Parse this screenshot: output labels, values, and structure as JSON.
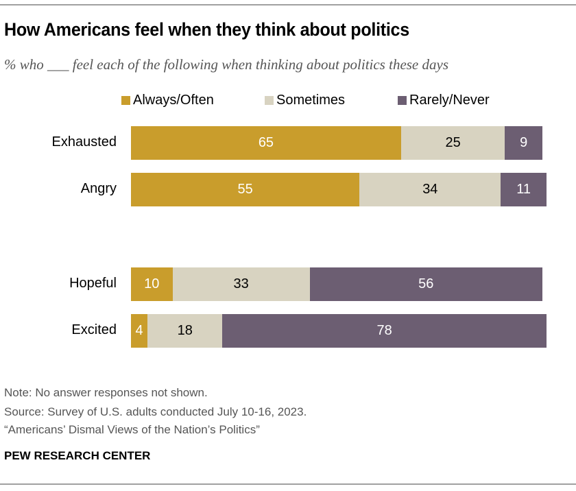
{
  "chart_data": {
    "type": "bar",
    "orientation": "horizontal",
    "stacked": true,
    "title": "How Americans feel when they think about politics",
    "subtitle": "% who ___ feel each of the following when thinking about politics these days",
    "categories": [
      "Exhausted",
      "Angry",
      "Hopeful",
      "Excited"
    ],
    "series": [
      {
        "name": "Always/Often",
        "color": "#C99D2C",
        "label_color": "#ffffff",
        "values": [
          65,
          55,
          10,
          4
        ]
      },
      {
        "name": "Sometimes",
        "color": "#D8D3C1",
        "label_color": "#000000",
        "values": [
          25,
          34,
          33,
          18
        ]
      },
      {
        "name": "Rarely/Never",
        "color": "#6C5E72",
        "label_color": "#ffffff",
        "values": [
          9,
          11,
          56,
          78
        ]
      }
    ],
    "xlim": [
      0,
      100
    ],
    "legend": "top",
    "grid": false
  },
  "notes": {
    "note": "Note: No answer responses not shown.",
    "source": "Source: Survey of U.S. adults conducted July 10-16, 2023.",
    "report": "“Americans’ Dismal Views of the Nation’s Politics”",
    "brand": "PEW RESEARCH CENTER"
  }
}
